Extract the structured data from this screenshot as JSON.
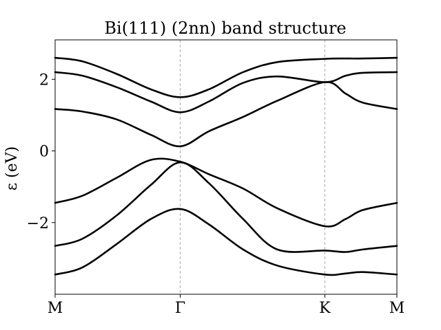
{
  "chart_data": {
    "type": "line",
    "title": "Bi(111) (2nn) band structure",
    "xlabel": "",
    "ylabel": "ε (eV)",
    "ylim": [
      -4.0,
      3.1
    ],
    "xlim": [
      0,
      1
    ],
    "grid": false,
    "x_ticks": [
      {
        "label": "M",
        "x": 0.0
      },
      {
        "label": "Γ",
        "x": 0.366
      },
      {
        "label": "K",
        "x": 0.789
      },
      {
        "label": "M",
        "x": 1.0
      }
    ],
    "y_ticks": [
      {
        "label": "−2",
        "value": -2
      },
      {
        "label": "0",
        "value": 0
      },
      {
        "label": "2",
        "value": 2
      }
    ],
    "x": [
      0.0,
      0.08,
      0.18,
      0.28,
      0.366,
      0.45,
      0.55,
      0.65,
      0.789,
      0.85,
      0.9,
      1.0
    ],
    "series": [
      {
        "values": [
          2.6,
          2.5,
          2.15,
          1.72,
          1.5,
          1.72,
          2.2,
          2.48,
          2.57,
          2.58,
          2.58,
          2.6
        ]
      },
      {
        "values": [
          2.2,
          2.1,
          1.78,
          1.38,
          1.08,
          1.38,
          1.9,
          2.08,
          1.92,
          2.1,
          2.18,
          2.2
        ]
      },
      {
        "values": [
          1.17,
          1.1,
          0.88,
          0.45,
          0.13,
          0.55,
          0.95,
          1.4,
          1.92,
          1.6,
          1.35,
          1.17
        ]
      },
      {
        "values": [
          -1.45,
          -1.25,
          -0.75,
          -0.25,
          -0.3,
          -0.65,
          -1.05,
          -1.6,
          -2.1,
          -1.9,
          -1.65,
          -1.45
        ]
      },
      {
        "values": [
          -2.65,
          -2.45,
          -1.8,
          -0.95,
          -0.32,
          -0.9,
          -1.9,
          -2.75,
          -2.78,
          -2.82,
          -2.75,
          -2.65
        ]
      },
      {
        "values": [
          -3.45,
          -3.25,
          -2.6,
          -1.9,
          -1.62,
          -2.05,
          -2.75,
          -3.2,
          -3.45,
          -3.42,
          -3.38,
          -3.45
        ]
      }
    ]
  }
}
